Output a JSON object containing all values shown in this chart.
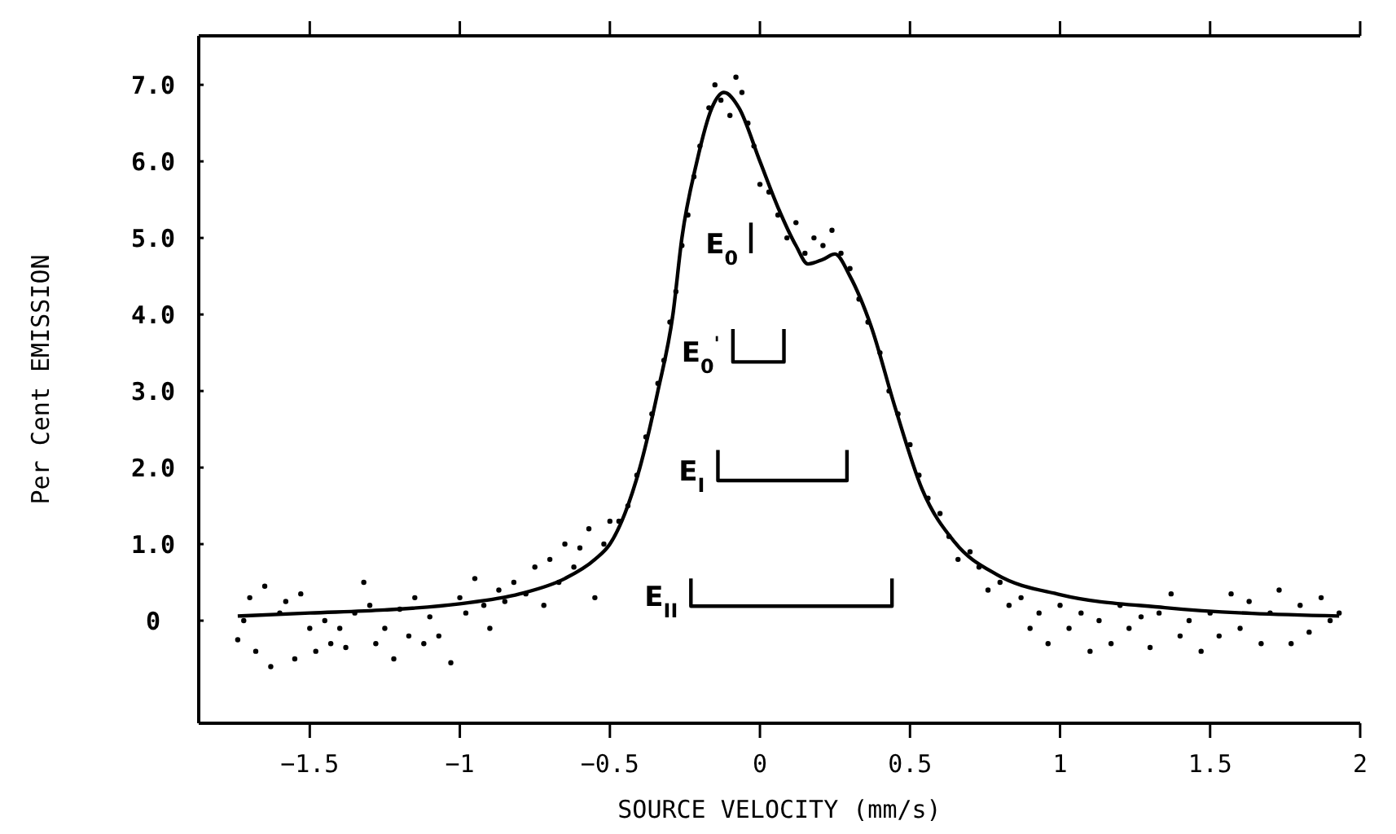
{
  "chart_data": {
    "type": "scatter",
    "xlabel": "SOURCE VELOCITY (mm/s)",
    "ylabel": "Per Cent EMISSION",
    "xlim": [
      -1.87,
      2
    ],
    "xticks": [
      -1.5,
      -1,
      -0.5,
      0,
      0.5,
      1,
      1.5,
      2
    ],
    "ylim": [
      -1.34,
      7.64
    ],
    "yticks": [
      {
        "value": 0,
        "label": "0"
      },
      {
        "value": 1,
        "label": "1.0"
      },
      {
        "value": 2,
        "label": "2.0"
      },
      {
        "value": 3,
        "label": "3.0"
      },
      {
        "value": 4,
        "label": "4.0"
      },
      {
        "value": 5,
        "label": "5.0"
      },
      {
        "value": 6,
        "label": "6.0"
      },
      {
        "value": 7,
        "label": "7.0"
      }
    ],
    "series": [
      {
        "color": "#000000",
        "marker": "circle",
        "x": [
          -1.74,
          -1.72,
          -1.7,
          -1.68,
          -1.65,
          -1.63,
          -1.6,
          -1.58,
          -1.55,
          -1.53,
          -1.5,
          -1.48,
          -1.45,
          -1.43,
          -1.4,
          -1.38,
          -1.35,
          -1.32,
          -1.3,
          -1.28,
          -1.25,
          -1.22,
          -1.2,
          -1.17,
          -1.15,
          -1.12,
          -1.1,
          -1.07,
          -1.03,
          -1,
          -0.98,
          -0.95,
          -0.92,
          -0.9,
          -0.87,
          -0.85,
          -0.82,
          -0.78,
          -0.75,
          -0.72,
          -0.7,
          -0.67,
          -0.65,
          -0.62,
          -0.6,
          -0.57,
          -0.55,
          -0.52,
          -0.5,
          -0.47,
          -0.44,
          -0.41,
          -0.38,
          -0.36,
          -0.34,
          -0.32,
          -0.3,
          -0.28,
          -0.26,
          -0.24,
          -0.22,
          -0.2,
          -0.17,
          -0.15,
          -0.13,
          -0.1,
          -0.08,
          -0.06,
          -0.04,
          -0.02,
          0,
          0.03,
          0.06,
          0.09,
          0.12,
          0.15,
          0.18,
          0.21,
          0.24,
          0.27,
          0.3,
          0.33,
          0.36,
          0.4,
          0.43,
          0.46,
          0.5,
          0.53,
          0.56,
          0.6,
          0.63,
          0.66,
          0.7,
          0.73,
          0.76,
          0.8,
          0.83,
          0.87,
          0.9,
          0.93,
          0.96,
          1,
          1.03,
          1.07,
          1.1,
          1.13,
          1.17,
          1.2,
          1.23,
          1.27,
          1.3,
          1.33,
          1.37,
          1.4,
          1.43,
          1.47,
          1.5,
          1.53,
          1.57,
          1.6,
          1.63,
          1.67,
          1.7,
          1.73,
          1.77,
          1.8,
          1.83,
          1.87,
          1.9,
          1.93
        ],
        "values": [
          -0.25,
          0,
          0.3,
          -0.4,
          0.45,
          -0.6,
          0.1,
          0.25,
          -0.5,
          0.35,
          -0.1,
          -0.4,
          0,
          -0.3,
          -0.1,
          -0.35,
          0.1,
          0.5,
          0.2,
          -0.3,
          -0.1,
          -0.5,
          0.15,
          -0.2,
          0.3,
          -0.3,
          0.05,
          -0.2,
          -0.55,
          0.3,
          0.1,
          0.55,
          0.2,
          -0.1,
          0.4,
          0.25,
          0.5,
          0.35,
          0.7,
          0.2,
          0.8,
          0.5,
          1,
          0.7,
          0.95,
          1.2,
          0.3,
          1,
          1.3,
          1.3,
          1.5,
          1.9,
          2.4,
          2.7,
          3.1,
          3.4,
          3.9,
          4.3,
          4.9,
          5.3,
          5.8,
          6.2,
          6.7,
          7,
          6.8,
          6.6,
          7.1,
          6.9,
          6.5,
          6.2,
          5.7,
          5.6,
          5.3,
          5,
          5.2,
          4.8,
          5,
          4.9,
          5.1,
          4.8,
          4.6,
          4.2,
          3.9,
          3.5,
          3,
          2.7,
          2.3,
          1.9,
          1.6,
          1.4,
          1.1,
          0.8,
          0.9,
          0.7,
          0.4,
          0.5,
          0.2,
          0.3,
          -0.1,
          0.1,
          -0.3,
          0.2,
          -0.1,
          0.1,
          -0.4,
          0,
          -0.3,
          0.2,
          -0.1,
          0.05,
          -0.35,
          0.1,
          0.35,
          -0.2,
          0,
          -0.4,
          0.1,
          -0.2,
          0.35,
          -0.1,
          0.25,
          -0.3,
          0.1,
          0.4,
          -0.3,
          0.2,
          -0.15,
          0.3,
          0,
          0.1
        ]
      },
      {
        "type": "line",
        "color": "#000000",
        "line_style": "solid",
        "x": [
          -1.74,
          -1.5,
          -1.25,
          -1,
          -0.8,
          -0.65,
          -0.55,
          -0.5,
          -0.45,
          -0.4,
          -0.34,
          -0.29,
          -0.26,
          -0.21,
          -0.16,
          -0.12,
          -0.07,
          0,
          0.06,
          0.12,
          0.16,
          0.21,
          0.25,
          0.3,
          0.37,
          0.45,
          0.54,
          0.65,
          0.79,
          1,
          1.35,
          1.93
        ],
        "values": [
          0.06,
          0.1,
          0.14,
          0.22,
          0.35,
          0.55,
          0.8,
          1,
          1.4,
          2,
          3,
          4,
          5,
          6,
          6.7,
          6.9,
          6.7,
          6,
          5.4,
          4.9,
          4.66,
          4.72,
          4.79,
          4.5,
          3.85,
          2.79,
          1.72,
          1.02,
          0.6,
          0.34,
          0.17,
          0.06
        ]
      },
      {
        "type": "line",
        "color": "#000000",
        "line_style": "solid",
        "x": [
          -0.03,
          -0.03
        ],
        "values": [
          5.2,
          4.8
        ]
      },
      {
        "type": "line",
        "color": "#000000",
        "line_style": "solid",
        "x": [
          -0.09,
          -0.09,
          0.08,
          0.08
        ],
        "values": [
          3.81,
          3.38,
          3.38,
          3.81
        ]
      },
      {
        "type": "line",
        "color": "#000000",
        "line_style": "solid",
        "x": [
          -0.14,
          -0.14,
          0.29,
          0.29
        ],
        "values": [
          2.23,
          1.83,
          1.83,
          2.23
        ]
      },
      {
        "type": "line",
        "color": "#000000",
        "line_style": "solid",
        "x": [
          -0.23,
          -0.23,
          0.44,
          0.44
        ],
        "values": [
          0.55,
          0.19,
          0.19,
          0.55
        ]
      }
    ],
    "annotations": [
      {
        "text": "E$_{0}$",
        "x": -0.03,
        "y": 4.8
      },
      {
        "text": "E$_{0}$$^{'}$",
        "x": -0.09,
        "y": 3.38
      },
      {
        "text": "E$_{I}$",
        "x": -0.14,
        "y": 1.83
      },
      {
        "text": "E$_{II}$",
        "x": -0.23,
        "y": 0.19
      }
    ]
  }
}
